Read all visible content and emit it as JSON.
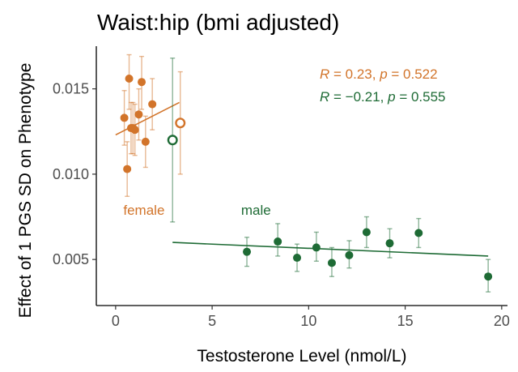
{
  "chart_data": {
    "type": "scatter",
    "title": "Waist:hip (bmi adjusted)",
    "xlabel": "Testosterone Level (nmol/L)",
    "ylabel": "Effect of 1 PGS SD on Phenotype",
    "xlim": [
      -1,
      20.3
    ],
    "ylim": [
      0.0023,
      0.0175
    ],
    "xticks": [
      0,
      5,
      10,
      15,
      20
    ],
    "xtick_labels": [
      "0",
      "5",
      "10",
      "15",
      "20"
    ],
    "yticks": [
      0.005,
      0.01,
      0.015
    ],
    "ytick_labels": [
      "0.005",
      "0.010",
      "0.015"
    ],
    "grid": false,
    "series": [
      {
        "name": "female",
        "color": "#D2742A",
        "label_pos": [
          0.4,
          0.0079
        ],
        "points": [
          {
            "x": 0.45,
            "y": 0.0133,
            "lo": 0.0117,
            "hi": 0.0149
          },
          {
            "x": 0.6,
            "y": 0.0103,
            "lo": 0.0087,
            "hi": 0.0119
          },
          {
            "x": 0.7,
            "y": 0.0156,
            "lo": 0.0138,
            "hi": 0.017
          },
          {
            "x": 0.8,
            "y": 0.0127,
            "lo": 0.0112,
            "hi": 0.0142
          },
          {
            "x": 0.9,
            "y": 0.0127,
            "lo": 0.0112,
            "hi": 0.0142
          },
          {
            "x": 1.0,
            "y": 0.0126,
            "lo": 0.0111,
            "hi": 0.0141
          },
          {
            "x": 1.2,
            "y": 0.0135,
            "lo": 0.012,
            "hi": 0.015
          },
          {
            "x": 1.35,
            "y": 0.0154,
            "lo": 0.0138,
            "hi": 0.0169
          },
          {
            "x": 1.55,
            "y": 0.0119,
            "lo": 0.0104,
            "hi": 0.0134
          },
          {
            "x": 1.9,
            "y": 0.0141,
            "lo": 0.0126,
            "hi": 0.0156
          },
          {
            "x": 3.35,
            "y": 0.013,
            "lo": 0.01,
            "hi": 0.016,
            "open": true
          }
        ],
        "fit": {
          "x0": 0.0,
          "y0": 0.0123,
          "x1": 3.3,
          "y1": 0.0142
        },
        "stat": {
          "R": "0.23",
          "p": "0.522"
        }
      },
      {
        "name": "male",
        "color": "#1E6B35",
        "label_pos": [
          6.5,
          0.0079
        ],
        "points": [
          {
            "x": 6.8,
            "y": 0.00545,
            "lo": 0.0046,
            "hi": 0.0063
          },
          {
            "x": 8.4,
            "y": 0.00605,
            "lo": 0.0052,
            "hi": 0.0071
          },
          {
            "x": 9.4,
            "y": 0.0051,
            "lo": 0.0043,
            "hi": 0.0059
          },
          {
            "x": 10.4,
            "y": 0.0057,
            "lo": 0.0049,
            "hi": 0.0066
          },
          {
            "x": 11.2,
            "y": 0.0048,
            "lo": 0.004,
            "hi": 0.0057
          },
          {
            "x": 12.1,
            "y": 0.00525,
            "lo": 0.0045,
            "hi": 0.0061
          },
          {
            "x": 13.0,
            "y": 0.0066,
            "lo": 0.0057,
            "hi": 0.0075
          },
          {
            "x": 14.2,
            "y": 0.00595,
            "lo": 0.0051,
            "hi": 0.0068
          },
          {
            "x": 15.7,
            "y": 0.00655,
            "lo": 0.0057,
            "hi": 0.0074
          },
          {
            "x": 19.3,
            "y": 0.004,
            "lo": 0.0031,
            "hi": 0.005
          },
          {
            "x": 2.95,
            "y": 0.012,
            "lo": 0.0072,
            "hi": 0.0168,
            "open": true
          }
        ],
        "fit": {
          "x0": 2.95,
          "y0": 0.006,
          "x1": 19.3,
          "y1": 0.0052
        },
        "stat": {
          "R": "−0.21",
          "p": "0.555"
        }
      }
    ]
  }
}
